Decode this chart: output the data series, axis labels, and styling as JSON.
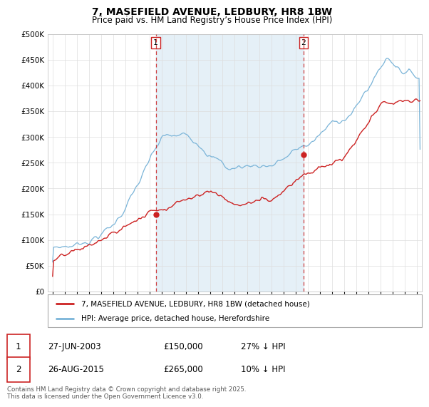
{
  "title": "7, MASEFIELD AVENUE, LEDBURY, HR8 1BW",
  "subtitle": "Price paid vs. HM Land Registry’s House Price Index (HPI)",
  "ylim": [
    0,
    500000
  ],
  "yticks": [
    0,
    50000,
    100000,
    150000,
    200000,
    250000,
    300000,
    350000,
    400000,
    450000,
    500000
  ],
  "ytick_labels": [
    "£0",
    "£50K",
    "£100K",
    "£150K",
    "£200K",
    "£250K",
    "£300K",
    "£350K",
    "£400K",
    "£450K",
    "£500K"
  ],
  "hpi_color": "#7ab4d8",
  "hpi_fill_color": "#daeaf5",
  "price_color": "#cc2222",
  "marker1_date": 2003.49,
  "marker1_price": 150000,
  "marker2_date": 2015.65,
  "marker2_price": 265000,
  "legend_property": "7, MASEFIELD AVENUE, LEDBURY, HR8 1BW (detached house)",
  "legend_hpi": "HPI: Average price, detached house, Herefordshire",
  "copyright": "Contains HM Land Registry data © Crown copyright and database right 2025.\nThis data is licensed under the Open Government Licence v3.0.",
  "background_color": "#ffffff",
  "grid_color": "#dddddd",
  "xlim_left": 1994.6,
  "xlim_right": 2025.4
}
